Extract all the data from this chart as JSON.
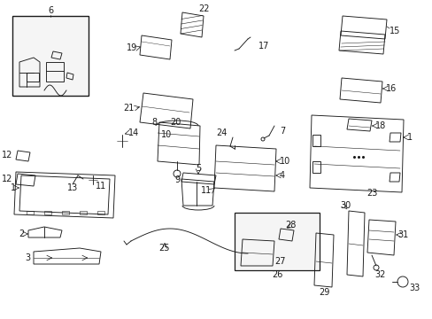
{
  "bg_color": "#ffffff",
  "line_color": "#1a1a1a",
  "fig_width": 4.89,
  "fig_height": 3.6,
  "dpi": 100,
  "lw": 0.65,
  "fs": 7.0
}
